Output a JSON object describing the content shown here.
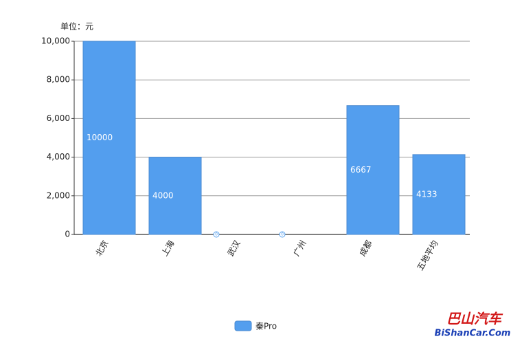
{
  "chart_data": {
    "type": "bar",
    "y_axis_label": "单位：元",
    "categories": [
      "北京",
      "上海",
      "武汉",
      "广州",
      "成都",
      "五地平均"
    ],
    "series": [
      {
        "name": "秦Pro",
        "color": "#539eee",
        "values": [
          10000,
          4000,
          0,
          0,
          6667,
          4133
        ]
      }
    ],
    "ylim": [
      0,
      10000
    ],
    "yticks": [
      0,
      {
        "value": 2000,
        "label": "2,000"
      },
      {
        "value": 4000,
        "label": "4,000"
      },
      {
        "value": 6000,
        "label": "6,000"
      },
      {
        "value": 8000,
        "label": "8,000"
      },
      {
        "value": 10000,
        "label": "10,000"
      }
    ],
    "grid": true,
    "legend": "bottom",
    "watermark": {
      "name": "巴山汽车",
      "site": "BiShanCar.Com"
    }
  }
}
